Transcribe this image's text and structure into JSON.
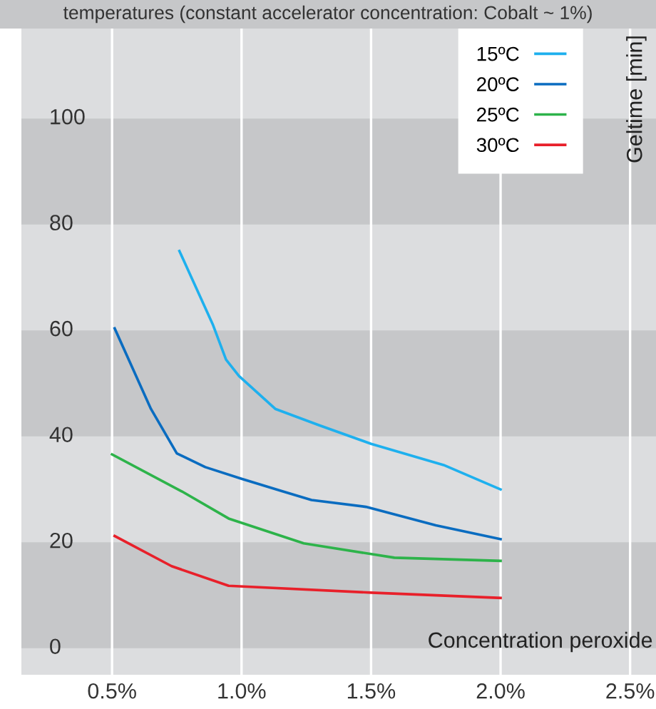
{
  "chart_data": {
    "type": "line",
    "subtitle": "temperatures (constant accelerator concentration: Cobalt ~ 1%)",
    "xlabel": "Concentration peroxide",
    "ylabel": "Geltime [min]",
    "series": [
      {
        "name": "15ºC",
        "color": "#1eb0ee",
        "x": [
          0.76,
          0.89,
          0.94,
          0.99,
          1.13,
          1.3,
          1.5,
          1.78,
          2.0
        ],
        "values": [
          75,
          61,
          54.5,
          51.4,
          45.2,
          42.1,
          38.6,
          34.6,
          30
        ]
      },
      {
        "name": "20ºC",
        "color": "#0a6cc0",
        "x": [
          0.51,
          0.65,
          0.75,
          0.86,
          1.0,
          1.16,
          1.27,
          1.48,
          1.75,
          2.0
        ],
        "values": [
          60.4,
          45.2,
          36.8,
          34.2,
          32,
          29.6,
          28,
          26.7,
          23.2,
          20.6
        ]
      },
      {
        "name": "25ºC",
        "color": "#2db34a",
        "x": [
          0.5,
          0.77,
          0.95,
          1.24,
          1.59,
          2.0
        ],
        "values": [
          36.6,
          29.6,
          24.5,
          19.8,
          17.1,
          16.5
        ]
      },
      {
        "name": "30ºC",
        "color": "#e8202a",
        "x": [
          0.51,
          0.73,
          0.95,
          1.5,
          2.0
        ],
        "values": [
          21.2,
          15.5,
          11.8,
          10.5,
          9.5
        ]
      }
    ],
    "xlim": [
      0.15,
      2.6
    ],
    "ylim": [
      -5,
      117
    ],
    "xticks": [
      {
        "value": 0.5,
        "label": "0.5%"
      },
      {
        "value": 1.0,
        "label": "1.0%"
      },
      {
        "value": 1.5,
        "label": "1.5%"
      },
      {
        "value": 2.0,
        "label": "2.0%"
      },
      {
        "value": 2.5,
        "label": "2.5%"
      }
    ],
    "yticks": [
      0,
      20,
      40,
      60,
      80,
      100
    ],
    "bands": [
      {
        "axis": "y",
        "from": 0,
        "to": 20,
        "color": "#c6c7c9"
      },
      {
        "axis": "y",
        "from": 40,
        "to": 60,
        "color": "#c6c7c9"
      },
      {
        "axis": "y",
        "from": 80,
        "to": 100,
        "color": "#c6c7c9"
      }
    ],
    "grid": "x",
    "legend": "top right",
    "marker": "none",
    "line_style": "solid"
  }
}
